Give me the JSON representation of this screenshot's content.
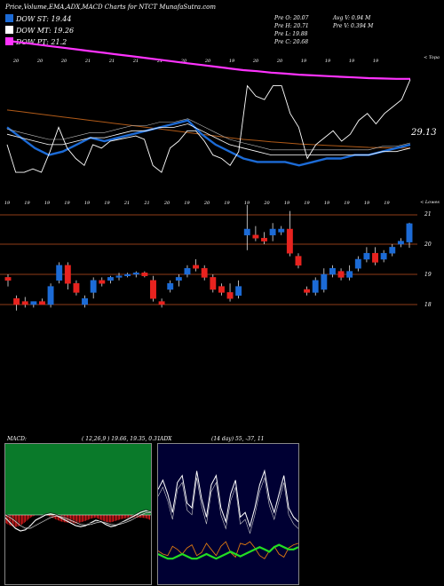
{
  "header": {
    "title": "Price,Volume,EMA,ADX,MACD Charts for NTCT MunafaSutra.com"
  },
  "legend": [
    {
      "label": "DOW ST: 19.44",
      "color": "#1c6bd6"
    },
    {
      "label": "DOW MT: 19.26",
      "color": "#ffffff"
    },
    {
      "label": "DOW PT: 21.2",
      "color": "#ff33ff"
    }
  ],
  "stats": {
    "open": "Pre   O: 20.07",
    "high": "Pre   H: 20.71",
    "low": "Pre   L: 19.88",
    "close": "Pre   C: 20.68",
    "avg_volume": "Avg V: 0.94   M",
    "pre_volume": "Pre   V: 0.394   M"
  },
  "colors": {
    "up": "#1c6bd6",
    "down": "#e8231f",
    "ema_short": "#1c6bd6",
    "ema_long": "#ff33ff",
    "ema_brown": "#b05a18",
    "price_line": "#ffffff",
    "macd_fill_up": "#0a7a2a",
    "macd_hist": "#ff2020",
    "adx_fill": "#000033",
    "adx_green": "#22dd22",
    "adx_orange": "#e07a10"
  },
  "chart_data": [
    {
      "type": "line",
      "name": "price-ema-panel",
      "right_label": "29.13",
      "corner_label": "< Topa",
      "top_tick_labels": [
        "20",
        "20",
        "20",
        "21",
        "21",
        "21",
        "21",
        "20",
        "20",
        "19",
        "20",
        "20",
        "19",
        "19",
        "19",
        "19"
      ],
      "bottom_tick_labels": [
        "19",
        "19",
        "19",
        "19",
        "19",
        "19",
        "21",
        "21",
        "20",
        "19",
        "20",
        "19",
        "19",
        "20",
        "19",
        "19",
        "19",
        "19",
        "19",
        "19"
      ],
      "series": [
        {
          "name": "DOW ST",
          "values": [
            19.8,
            19.5,
            19.2,
            19.0,
            19.1,
            19.3,
            19.5,
            19.4,
            19.5,
            19.6,
            19.7,
            19.8,
            19.9,
            20.0,
            19.6,
            19.3,
            19.1,
            18.9,
            18.8,
            18.8,
            18.8,
            18.7,
            18.8,
            18.9,
            18.9,
            19.0,
            19.0,
            19.1,
            19.2,
            19.3
          ]
        },
        {
          "name": "DOW MT",
          "values": [
            19.6,
            19.5,
            19.4,
            19.3,
            19.3,
            19.4,
            19.5,
            19.5,
            19.6,
            19.7,
            19.7,
            19.8,
            19.8,
            19.9,
            19.7,
            19.5,
            19.3,
            19.2,
            19.1,
            19.0,
            19.0,
            19.0,
            19.0,
            19.0,
            19.0,
            19.0,
            19.0,
            19.1,
            19.1,
            19.2
          ]
        },
        {
          "name": "DOW PT",
          "values": [
            22.3,
            22.25,
            22.2,
            22.15,
            22.1,
            22.05,
            22.0,
            21.95,
            21.9,
            21.85,
            21.8,
            21.75,
            21.7,
            21.65,
            21.6,
            21.55,
            21.5,
            21.45,
            21.42,
            21.38,
            21.35,
            21.32,
            21.3,
            21.28,
            21.26,
            21.24,
            21.22,
            21.21,
            21.2,
            21.2
          ]
        }
      ]
    },
    {
      "type": "candlestick",
      "name": "price-panel",
      "corner_label": "< Lowes",
      "top_tick_labels": [
        "20",
        "20",
        "20",
        "21",
        "21",
        "21",
        "21",
        "20",
        "20",
        "19",
        "20",
        "20",
        "19",
        "19",
        "19",
        "19"
      ],
      "y_tick_labels": [
        "21",
        "20",
        "19",
        "18"
      ],
      "ylim": [
        17.6,
        21.5
      ],
      "candles": [
        {
          "o": 18.9,
          "h": 19.0,
          "l": 18.6,
          "c": 18.8
        },
        {
          "o": 18.2,
          "h": 18.3,
          "l": 17.8,
          "c": 18.0
        },
        {
          "o": 18.1,
          "h": 18.25,
          "l": 17.9,
          "c": 18.0
        },
        {
          "o": 18.0,
          "h": 18.1,
          "l": 17.9,
          "c": 18.1
        },
        {
          "o": 18.1,
          "h": 18.2,
          "l": 18.0,
          "c": 18.0
        },
        {
          "o": 18.0,
          "h": 18.7,
          "l": 17.9,
          "c": 18.6
        },
        {
          "o": 18.8,
          "h": 19.4,
          "l": 18.7,
          "c": 19.3
        },
        {
          "o": 19.3,
          "h": 19.4,
          "l": 18.5,
          "c": 18.7
        },
        {
          "o": 18.7,
          "h": 18.8,
          "l": 18.3,
          "c": 18.4
        },
        {
          "o": 18.0,
          "h": 18.3,
          "l": 17.9,
          "c": 18.2
        },
        {
          "o": 18.4,
          "h": 18.9,
          "l": 18.2,
          "c": 18.8
        },
        {
          "o": 18.8,
          "h": 18.9,
          "l": 18.6,
          "c": 18.7
        },
        {
          "o": 18.8,
          "h": 18.95,
          "l": 18.7,
          "c": 18.9
        },
        {
          "o": 18.9,
          "h": 19.05,
          "l": 18.8,
          "c": 18.95
        },
        {
          "o": 18.95,
          "h": 19.05,
          "l": 18.9,
          "c": 19.0
        },
        {
          "o": 19.0,
          "h": 19.1,
          "l": 18.9,
          "c": 19.05
        },
        {
          "o": 19.05,
          "h": 19.1,
          "l": 18.9,
          "c": 18.95
        },
        {
          "o": 18.8,
          "h": 18.95,
          "l": 18.1,
          "c": 18.2
        },
        {
          "o": 18.1,
          "h": 18.2,
          "l": 17.9,
          "c": 18.0
        },
        {
          "o": 18.5,
          "h": 18.8,
          "l": 18.4,
          "c": 18.7
        },
        {
          "o": 18.8,
          "h": 19.0,
          "l": 18.6,
          "c": 18.9
        },
        {
          "o": 19.0,
          "h": 19.3,
          "l": 18.9,
          "c": 19.2
        },
        {
          "o": 19.3,
          "h": 19.5,
          "l": 19.1,
          "c": 19.2
        },
        {
          "o": 19.2,
          "h": 19.3,
          "l": 18.8,
          "c": 18.9
        },
        {
          "o": 18.9,
          "h": 19.0,
          "l": 18.4,
          "c": 18.5
        },
        {
          "o": 18.6,
          "h": 18.7,
          "l": 18.3,
          "c": 18.4
        },
        {
          "o": 18.4,
          "h": 18.7,
          "l": 18.1,
          "c": 18.2
        },
        {
          "o": 18.3,
          "h": 18.8,
          "l": 18.2,
          "c": 18.6
        },
        {
          "o": 20.3,
          "h": 21.3,
          "l": 19.8,
          "c": 20.5
        },
        {
          "o": 20.3,
          "h": 20.6,
          "l": 20.1,
          "c": 20.2
        },
        {
          "o": 20.2,
          "h": 20.4,
          "l": 20.0,
          "c": 20.1
        },
        {
          "o": 20.3,
          "h": 20.7,
          "l": 20.1,
          "c": 20.5
        },
        {
          "o": 20.4,
          "h": 20.6,
          "l": 20.3,
          "c": 20.5
        },
        {
          "o": 20.5,
          "h": 21.1,
          "l": 19.6,
          "c": 19.7
        },
        {
          "o": 19.6,
          "h": 19.7,
          "l": 19.2,
          "c": 19.3
        },
        {
          "o": 18.5,
          "h": 18.6,
          "l": 18.3,
          "c": 18.4
        },
        {
          "o": 18.4,
          "h": 18.9,
          "l": 18.3,
          "c": 18.8
        },
        {
          "o": 18.5,
          "h": 19.2,
          "l": 18.4,
          "c": 19.0
        },
        {
          "o": 19.0,
          "h": 19.3,
          "l": 18.9,
          "c": 19.2
        },
        {
          "o": 19.1,
          "h": 19.2,
          "l": 18.8,
          "c": 18.9
        },
        {
          "o": 18.9,
          "h": 19.3,
          "l": 18.8,
          "c": 19.1
        },
        {
          "o": 19.2,
          "h": 19.6,
          "l": 19.1,
          "c": 19.5
        },
        {
          "o": 19.5,
          "h": 19.9,
          "l": 19.4,
          "c": 19.7
        },
        {
          "o": 19.7,
          "h": 19.9,
          "l": 19.3,
          "c": 19.4
        },
        {
          "o": 19.5,
          "h": 19.8,
          "l": 19.4,
          "c": 19.7
        },
        {
          "o": 19.7,
          "h": 20.0,
          "l": 19.6,
          "c": 19.9
        },
        {
          "o": 20.0,
          "h": 20.2,
          "l": 19.9,
          "c": 20.1
        },
        {
          "o": 20.07,
          "h": 20.71,
          "l": 19.88,
          "c": 20.68
        }
      ]
    },
    {
      "type": "line",
      "name": "macd-panel",
      "label": "MACD:",
      "params": "( 12,26,9 ) 19.66,  19.35,  0.31",
      "series": [
        {
          "name": "macd",
          "values": [
            -0.05,
            -0.15,
            -0.25,
            -0.3,
            -0.28,
            -0.2,
            -0.1,
            -0.05,
            0.0,
            0.02,
            0.0,
            -0.05,
            -0.1,
            -0.15,
            -0.2,
            -0.22,
            -0.2,
            -0.15,
            -0.1,
            -0.12,
            -0.18,
            -0.22,
            -0.2,
            -0.15,
            -0.1,
            -0.05,
            0.0,
            0.05,
            0.08,
            0.05
          ]
        },
        {
          "name": "signal",
          "values": [
            0.0,
            -0.05,
            -0.12,
            -0.2,
            -0.25,
            -0.25,
            -0.2,
            -0.15,
            -0.1,
            -0.05,
            -0.02,
            -0.03,
            -0.06,
            -0.1,
            -0.14,
            -0.18,
            -0.19,
            -0.18,
            -0.15,
            -0.13,
            -0.15,
            -0.18,
            -0.19,
            -0.17,
            -0.14,
            -0.1,
            -0.05,
            0.0,
            0.04,
            0.05
          ]
        }
      ]
    },
    {
      "type": "line",
      "name": "adx-panel",
      "label": "ADX",
      "params": "(14 day) 55,  -37,  11",
      "series": [
        {
          "name": "plus-di",
          "values": [
            38,
            42,
            36,
            28,
            41,
            44,
            32,
            30,
            46,
            34,
            26,
            40,
            44,
            30,
            24,
            36,
            42,
            26,
            28,
            22,
            30,
            40,
            46,
            34,
            28,
            36,
            44,
            30,
            26,
            24
          ]
        },
        {
          "name": "minus-di",
          "values": [
            34,
            30,
            28,
            40,
            36,
            30,
            38,
            42,
            28,
            32,
            44,
            36,
            28,
            40,
            46,
            32,
            26,
            44,
            42,
            46,
            38,
            28,
            24,
            34,
            40,
            30,
            26,
            38,
            42,
            44
          ]
        },
        {
          "name": "adx",
          "values": [
            10,
            9,
            8,
            8,
            9,
            10,
            9,
            8,
            8,
            9,
            10,
            9,
            8,
            9,
            10,
            11,
            10,
            9,
            10,
            11,
            12,
            13,
            12,
            11,
            13,
            14,
            13,
            12,
            12,
            13
          ]
        }
      ]
    }
  ]
}
